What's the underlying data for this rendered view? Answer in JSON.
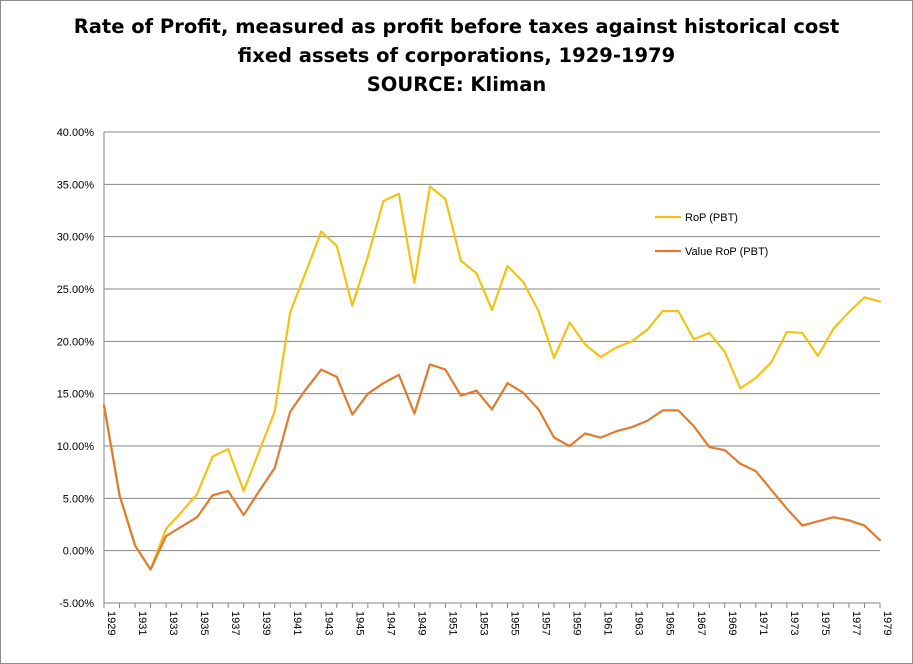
{
  "chart_data": {
    "type": "line",
    "title_lines": [
      "Rate of Profit, measured as profit before taxes against historical cost",
      "fixed assets of corporations, 1929-1979",
      "SOURCE: Kliman"
    ],
    "x": [
      1929,
      1930,
      1931,
      1932,
      1933,
      1934,
      1935,
      1936,
      1937,
      1938,
      1939,
      1940,
      1941,
      1942,
      1943,
      1944,
      1945,
      1946,
      1947,
      1948,
      1949,
      1950,
      1951,
      1952,
      1953,
      1954,
      1955,
      1956,
      1957,
      1958,
      1959,
      1960,
      1961,
      1962,
      1963,
      1964,
      1965,
      1966,
      1967,
      1968,
      1969,
      1970,
      1971,
      1972,
      1973,
      1974,
      1975,
      1976,
      1977,
      1978,
      1979
    ],
    "x_tick_labels": [
      "1929",
      "1931",
      "1933",
      "1935",
      "1937",
      "1939",
      "1941",
      "1943",
      "1945",
      "1947",
      "1949",
      "1951",
      "1953",
      "1955",
      "1957",
      "1959",
      "1961",
      "1963",
      "1965",
      "1967",
      "1969",
      "1971",
      "1973",
      "1975",
      "1977",
      "1979"
    ],
    "ylim": [
      -5,
      40
    ],
    "y_tick_labels": [
      "-5.00%",
      "0.00%",
      "5.00%",
      "10.00%",
      "15.00%",
      "20.00%",
      "25.00%",
      "30.00%",
      "35.00%",
      "40.00%"
    ],
    "grid": true,
    "legend_position": "right",
    "series": [
      {
        "name": "RoP (PBT)",
        "color": "#F2C314",
        "values": [
          13.9,
          5.3,
          0.5,
          -1.8,
          2.1,
          3.7,
          5.4,
          9.0,
          9.7,
          5.7,
          9.5,
          13.3,
          22.8,
          26.6,
          30.5,
          29.1,
          23.4,
          28.1,
          33.4,
          34.1,
          25.6,
          34.8,
          33.6,
          27.7,
          26.5,
          23.0,
          27.2,
          25.7,
          22.9,
          18.4,
          21.8,
          19.7,
          18.5,
          19.4,
          20.0,
          21.1,
          22.9,
          22.9,
          20.2,
          20.8,
          19.0,
          15.5,
          16.5,
          18.0,
          20.9,
          20.8,
          18.6,
          21.2,
          22.8,
          24.2,
          23.8
        ]
      },
      {
        "name": "Value RoP (PBT)",
        "color": "#E07B30",
        "values": [
          13.9,
          5.3,
          0.5,
          -1.8,
          1.4,
          2.3,
          3.2,
          5.3,
          5.7,
          3.4,
          5.7,
          7.9,
          13.3,
          15.4,
          17.3,
          16.6,
          13.0,
          15.0,
          16.0,
          16.8,
          13.1,
          17.8,
          17.3,
          14.8,
          15.3,
          13.5,
          16.0,
          15.1,
          13.5,
          10.8,
          10.0,
          11.2,
          10.8,
          11.4,
          11.8,
          12.4,
          13.4,
          13.4,
          11.9,
          9.9,
          9.6,
          8.3,
          7.6,
          5.8,
          4.0,
          2.4,
          2.8,
          3.2,
          2.9,
          2.4,
          1.0
        ]
      }
    ]
  }
}
